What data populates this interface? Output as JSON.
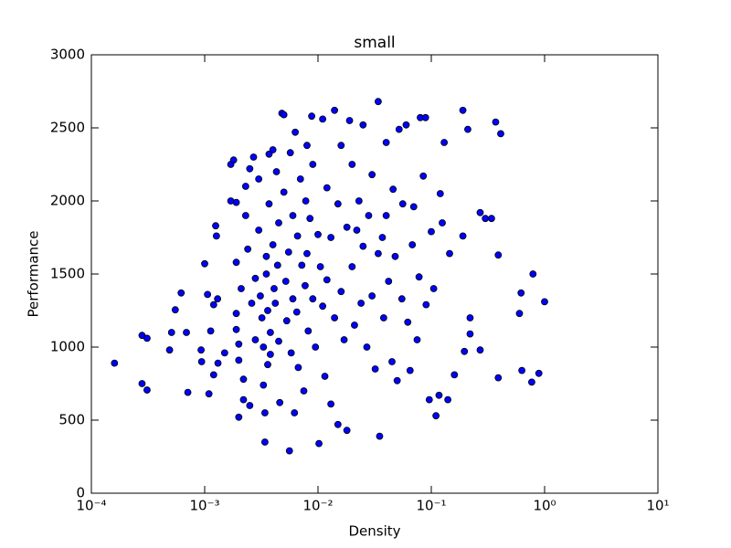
{
  "chart_data": {
    "type": "scatter",
    "title": "small",
    "xlabel": "Density",
    "ylabel": "Performance",
    "xscale": "log",
    "xlim": [
      0.0001,
      10
    ],
    "ylim": [
      0,
      3000
    ],
    "xticks": [
      {
        "value": 0.0001,
        "label": "10⁻⁴"
      },
      {
        "value": 0.001,
        "label": "10⁻³"
      },
      {
        "value": 0.01,
        "label": "10⁻²"
      },
      {
        "value": 0.1,
        "label": "10⁻¹"
      },
      {
        "value": 1,
        "label": "10⁰"
      },
      {
        "value": 10,
        "label": "10¹"
      }
    ],
    "yticks": [
      0,
      500,
      1000,
      1500,
      2000,
      2500,
      3000
    ],
    "color": "#0000ff",
    "x": [
      0.00016,
      0.00028,
      0.00031,
      0.00028,
      0.00031,
      0.00049,
      0.00051,
      0.00055,
      0.00062,
      0.00069,
      0.00071,
      0.00093,
      0.00094,
      0.001,
      0.00106,
      0.00109,
      0.00113,
      0.00125,
      0.00127,
      0.0012,
      0.00131,
      0.0012,
      0.0013,
      0.0015,
      0.0017,
      0.0018,
      0.0017,
      0.0019,
      0.0019,
      0.0019,
      0.0019,
      0.002,
      0.002,
      0.002,
      0.0021,
      0.0022,
      0.0022,
      0.0023,
      0.0023,
      0.0024,
      0.0025,
      0.0025,
      0.0026,
      0.0027,
      0.0028,
      0.0028,
      0.003,
      0.003,
      0.0031,
      0.0032,
      0.0033,
      0.0033,
      0.0034,
      0.0034,
      0.0035,
      0.0035,
      0.0036,
      0.0036,
      0.0037,
      0.0037,
      0.0038,
      0.0038,
      0.004,
      0.004,
      0.0041,
      0.0042,
      0.0043,
      0.0044,
      0.0045,
      0.0045,
      0.0046,
      0.0048,
      0.005,
      0.005,
      0.0052,
      0.0053,
      0.0055,
      0.0056,
      0.0057,
      0.0058,
      0.006,
      0.006,
      0.0062,
      0.0063,
      0.0065,
      0.0066,
      0.0067,
      0.007,
      0.0072,
      0.0075,
      0.0077,
      0.0078,
      0.008,
      0.008,
      0.0082,
      0.0085,
      0.0088,
      0.009,
      0.009,
      0.0095,
      0.01,
      0.0102,
      0.0105,
      0.011,
      0.011,
      0.0115,
      0.012,
      0.012,
      0.013,
      0.013,
      0.014,
      0.014,
      0.015,
      0.015,
      0.016,
      0.016,
      0.017,
      0.018,
      0.018,
      0.019,
      0.02,
      0.02,
      0.021,
      0.022,
      0.023,
      0.024,
      0.025,
      0.025,
      0.027,
      0.028,
      0.03,
      0.03,
      0.032,
      0.034,
      0.034,
      0.035,
      0.037,
      0.038,
      0.04,
      0.04,
      0.042,
      0.045,
      0.046,
      0.048,
      0.05,
      0.052,
      0.055,
      0.056,
      0.06,
      0.062,
      0.065,
      0.068,
      0.07,
      0.075,
      0.078,
      0.08,
      0.085,
      0.089,
      0.09,
      0.096,
      0.1,
      0.105,
      0.11,
      0.117,
      0.12,
      0.125,
      0.13,
      0.14,
      0.145,
      0.16,
      0.19,
      0.19,
      0.196,
      0.21,
      0.22,
      0.22,
      0.27,
      0.27,
      0.3,
      0.34,
      0.37,
      0.39,
      0.39,
      0.41,
      0.6,
      0.62,
      0.63,
      0.77,
      0.79,
      0.89,
      1.0
    ],
    "values": [
      890,
      750,
      706,
      1080,
      1060,
      980,
      1100,
      1255,
      1370,
      1100,
      690,
      980,
      900,
      1570,
      1360,
      680,
      1110,
      1830,
      1760,
      810,
      890,
      1290,
      1330,
      960,
      2250,
      2280,
      2000,
      1990,
      1580,
      1230,
      1120,
      1020,
      910,
      520,
      1400,
      780,
      640,
      1900,
      2100,
      1670,
      2220,
      600,
      1300,
      2300,
      1470,
      1050,
      2150,
      1800,
      1350,
      1200,
      1000,
      740,
      550,
      350,
      1620,
      1500,
      1250,
      880,
      2320,
      1980,
      1100,
      950,
      2350,
      1700,
      1400,
      1300,
      2200,
      1560,
      1850,
      1040,
      620,
      2600,
      2590,
      2060,
      1450,
      1180,
      1650,
      290,
      2330,
      960,
      1900,
      1330,
      550,
      2470,
      1240,
      1760,
      860,
      2150,
      1560,
      700,
      1420,
      2000,
      2380,
      1640,
      1110,
      1880,
      2580,
      2250,
      1330,
      1000,
      1770,
      340,
      1550,
      2560,
      1280,
      800,
      2090,
      1460,
      1750,
      610,
      2620,
      1200,
      470,
      1980,
      2380,
      1380,
      1050,
      430,
      1820,
      2550,
      2250,
      1550,
      1150,
      1800,
      2000,
      1300,
      2520,
      1690,
      1000,
      1900,
      2180,
      1350,
      850,
      2680,
      1640,
      390,
      1750,
      1200,
      2400,
      1900,
      1450,
      900,
      2080,
      1620,
      770,
      2490,
      1330,
      1980,
      2520,
      1170,
      840,
      1700,
      1960,
      1050,
      1480,
      2570,
      2170,
      2570,
      1290,
      640,
      1790,
      1400,
      530,
      670,
      2050,
      1850,
      2400,
      640,
      1640,
      810,
      2620,
      1760,
      970,
      2490,
      1200,
      1090,
      980,
      1920,
      1880,
      1880,
      2540,
      1630,
      790,
      2460,
      1230,
      1370,
      840,
      760,
      1500,
      820,
      1310
    ]
  }
}
